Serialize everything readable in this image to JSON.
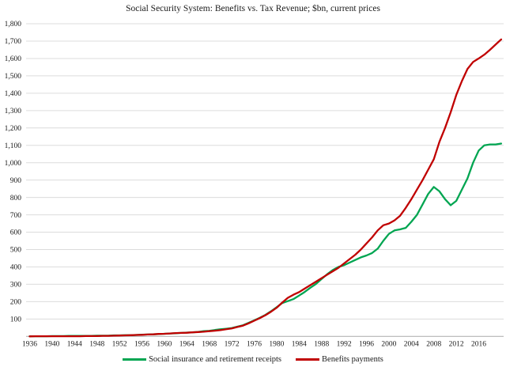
{
  "title": "Social Security System: Benefits vs. Tax Revenue; $bn, current prices",
  "legend": [
    {
      "label": "Social insurance and retirement receipts",
      "color": "#00A551"
    },
    {
      "label": "Benefits payments",
      "color": "#C00000"
    }
  ],
  "axes": {
    "y_tick_labels": [
      "1,800",
      "1,700",
      "1,600",
      "1,500",
      "1,400",
      "1,300",
      "1,200",
      "1,100",
      "1,000",
      "900",
      "800",
      "700",
      "600",
      "500",
      "400",
      "300",
      "200",
      "100"
    ],
    "x_tick_labels": [
      "1936",
      "1940",
      "1944",
      "1948",
      "1952",
      "1956",
      "1960",
      "1964",
      "1968",
      "1972",
      "1976",
      "1980",
      "1984",
      "1988",
      "1992",
      "1996",
      "2000",
      "2004",
      "2008",
      "2012",
      "2016"
    ]
  },
  "colors": {
    "gridline": "#dcdcdc",
    "axis_line": "#b5b5b5",
    "text": "#1a1a1a"
  },
  "chart_data": {
    "type": "line",
    "title": "Social Security System: Benefits vs. Tax Revenue; $bn, current prices",
    "xlabel": "",
    "ylabel": "",
    "xlim": [
      1936,
      2020
    ],
    "ylim": [
      0,
      1800
    ],
    "y_tick_step": 100,
    "grid": "horizontal",
    "legend_position": "bottom",
    "x": [
      1936,
      1937,
      1938,
      1939,
      1940,
      1941,
      1942,
      1943,
      1944,
      1945,
      1946,
      1947,
      1948,
      1949,
      1950,
      1951,
      1952,
      1953,
      1954,
      1955,
      1956,
      1957,
      1958,
      1959,
      1960,
      1961,
      1962,
      1963,
      1964,
      1965,
      1966,
      1967,
      1968,
      1969,
      1970,
      1971,
      1972,
      1973,
      1974,
      1975,
      1976,
      1977,
      1978,
      1979,
      1980,
      1981,
      1982,
      1983,
      1984,
      1985,
      1986,
      1987,
      1988,
      1989,
      1990,
      1991,
      1992,
      1993,
      1994,
      1995,
      1996,
      1997,
      1998,
      1999,
      2000,
      2001,
      2002,
      2003,
      2004,
      2005,
      2006,
      2007,
      2008,
      2009,
      2010,
      2011,
      2012,
      2013,
      2014,
      2015,
      2016,
      2017,
      2018,
      2019,
      2020
    ],
    "series": [
      {
        "name": "Social insurance and retirement receipts",
        "color": "#00A551",
        "values": [
          1,
          1,
          1,
          1,
          2,
          2,
          2,
          3,
          3,
          3,
          3,
          3,
          4,
          4,
          4,
          6,
          6,
          7,
          7,
          8,
          10,
          11,
          12,
          13,
          15,
          17,
          18,
          20,
          22,
          23,
          26,
          30,
          32,
          37,
          41,
          44,
          48,
          56,
          64,
          78,
          92,
          107,
          124,
          145,
          168,
          192,
          203,
          215,
          235,
          256,
          280,
          302,
          330,
          358,
          382,
          400,
          410,
          425,
          440,
          455,
          466,
          480,
          505,
          550,
          590,
          610,
          616,
          625,
          660,
          700,
          760,
          820,
          860,
          835,
          790,
          755,
          780,
          845,
          910,
          1000,
          1070,
          1100,
          1105,
          1105,
          1110
        ]
      },
      {
        "name": "Benefits payments",
        "color": "#C00000",
        "values": [
          0,
          1,
          1,
          1,
          1,
          1,
          1,
          1,
          1,
          1,
          2,
          2,
          2,
          3,
          3,
          4,
          5,
          6,
          7,
          8,
          9,
          11,
          12,
          14,
          15,
          17,
          19,
          20,
          21,
          23,
          25,
          27,
          30,
          33,
          36,
          41,
          46,
          54,
          62,
          75,
          90,
          105,
          122,
          142,
          165,
          195,
          222,
          240,
          255,
          275,
          295,
          315,
          335,
          355,
          375,
          395,
          420,
          445,
          470,
          500,
          535,
          570,
          610,
          640,
          650,
          668,
          695,
          740,
          790,
          845,
          900,
          960,
          1020,
          1120,
          1200,
          1290,
          1390,
          1470,
          1540,
          1580,
          1600,
          1622,
          1650,
          1680,
          1710
        ]
      }
    ]
  }
}
